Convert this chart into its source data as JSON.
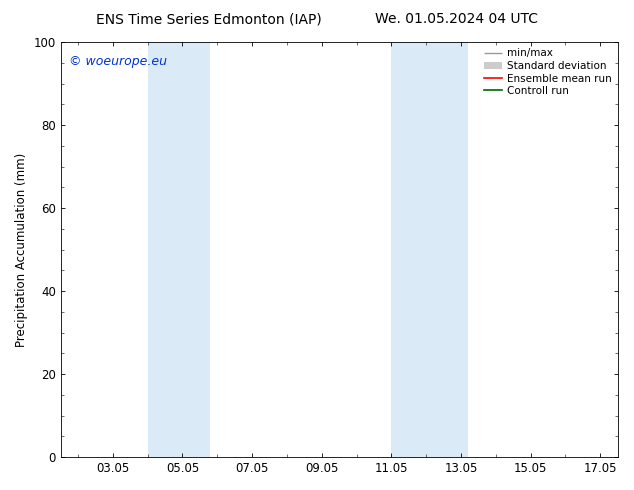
{
  "title_left": "ENS Time Series Edmonton (IAP)",
  "title_right": "We. 01.05.2024 04 UTC",
  "ylabel": "Precipitation Accumulation (mm)",
  "ylim": [
    0,
    100
  ],
  "yticks": [
    0,
    20,
    40,
    60,
    80,
    100
  ],
  "xtick_labels": [
    "03.05",
    "05.05",
    "07.05",
    "09.05",
    "11.05",
    "13.05",
    "15.05",
    "17.05"
  ],
  "xtick_positions": [
    3,
    5,
    7,
    9,
    11,
    13,
    15,
    17
  ],
  "xlim": [
    1.5,
    17.5
  ],
  "shaded_bands": [
    {
      "x_start": 4.0,
      "x_end": 5.8,
      "color": "#daeaf7"
    },
    {
      "x_start": 11.0,
      "x_end": 13.2,
      "color": "#daeaf7"
    }
  ],
  "watermark_text": "© woeurope.eu",
  "watermark_color": "#0033cc",
  "legend_entries": [
    {
      "label": "min/max",
      "color": "#999999"
    },
    {
      "label": "Standard deviation",
      "color": "#cccccc"
    },
    {
      "label": "Ensemble mean run",
      "color": "#ff0000"
    },
    {
      "label": "Controll run",
      "color": "#006600"
    }
  ],
  "bg_color": "#ffffff",
  "plot_font_size": 8.5,
  "title_fontsize": 10,
  "legend_fontsize": 7.5
}
